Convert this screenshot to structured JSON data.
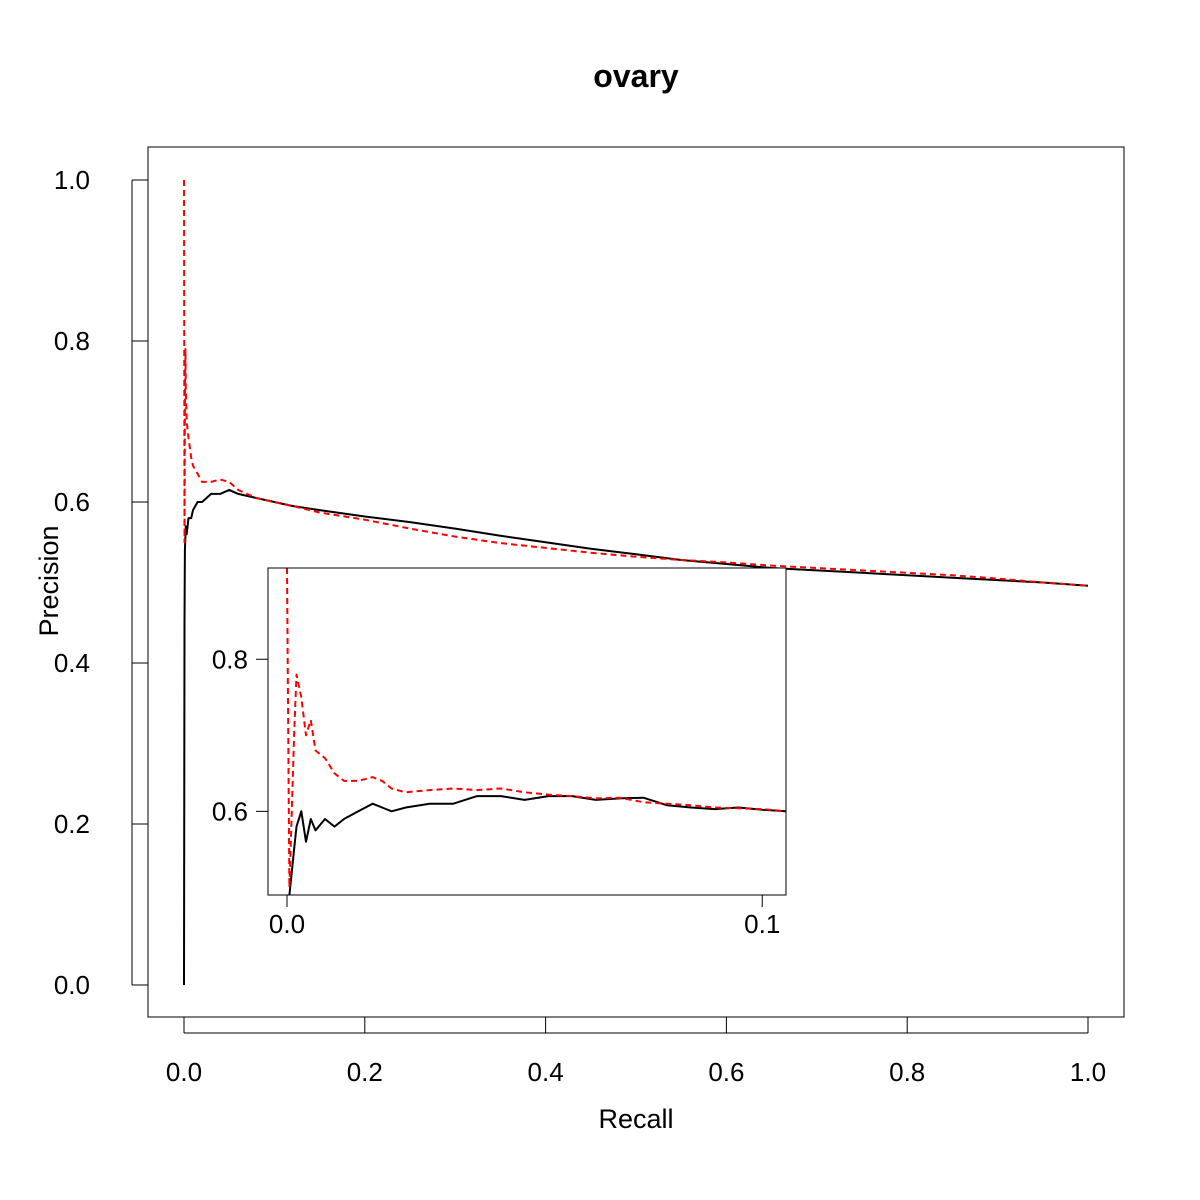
{
  "colors": {
    "series_black": "#000000",
    "series_red": "#ff0000"
  },
  "chart_data": [
    {
      "type": "line",
      "title": "ovary",
      "xlabel": "Recall",
      "ylabel": "Precision",
      "xlim": [
        0,
        1
      ],
      "ylim": [
        0,
        1
      ],
      "xticks": [
        0,
        0.2,
        0.4,
        0.6,
        0.8,
        1.0
      ],
      "xtick_labels": [
        "0.0",
        "0.2",
        "0.4",
        "0.6",
        "0.8",
        "1.0"
      ],
      "yticks": [
        0,
        0.2,
        0.4,
        0.6,
        0.8,
        1.0
      ],
      "ytick_labels": [
        "0.0",
        "0.2",
        "0.4",
        "0.6",
        "0.8",
        "1.0"
      ],
      "grid": false,
      "series": [
        {
          "color": "#000000",
          "line_style": "solid",
          "x": [
            0,
            0.0005,
            0.001,
            0.002,
            0.003,
            0.005,
            0.008,
            0.01,
            0.015,
            0.02,
            0.03,
            0.04,
            0.05,
            0.06,
            0.08,
            0.1,
            0.12,
            0.15,
            0.2,
            0.25,
            0.3,
            0.35,
            0.4,
            0.45,
            0.5,
            0.55,
            0.6,
            0.65,
            0.7,
            0.75,
            0.8,
            0.85,
            0.9,
            0.95,
            1.0
          ],
          "y": [
            0.0,
            0.45,
            0.54,
            0.57,
            0.56,
            0.58,
            0.58,
            0.59,
            0.6,
            0.6,
            0.61,
            0.61,
            0.615,
            0.61,
            0.605,
            0.6,
            0.595,
            0.59,
            0.582,
            0.575,
            0.567,
            0.558,
            0.55,
            0.542,
            0.535,
            0.528,
            0.523,
            0.518,
            0.515,
            0.512,
            0.509,
            0.506,
            0.503,
            0.5,
            0.496
          ]
        },
        {
          "color": "#ff0000",
          "line_style": "dashed",
          "x": [
            0,
            0.0005,
            0.001,
            0.0015,
            0.002,
            0.003,
            0.005,
            0.008,
            0.01,
            0.015,
            0.02,
            0.03,
            0.04,
            0.05,
            0.06,
            0.08,
            0.1,
            0.12,
            0.15,
            0.2,
            0.25,
            0.3,
            0.35,
            0.4,
            0.45,
            0.5,
            0.55,
            0.6,
            0.65,
            0.7,
            0.75,
            0.8,
            0.85,
            0.9,
            0.95,
            1.0
          ],
          "y": [
            1.0,
            0.55,
            0.72,
            0.79,
            0.74,
            0.7,
            0.68,
            0.655,
            0.645,
            0.635,
            0.625,
            0.625,
            0.628,
            0.625,
            0.615,
            0.605,
            0.6,
            0.595,
            0.587,
            0.578,
            0.567,
            0.557,
            0.549,
            0.543,
            0.537,
            0.532,
            0.528,
            0.525,
            0.521,
            0.518,
            0.515,
            0.512,
            0.509,
            0.505,
            0.5,
            0.496
          ]
        }
      ]
    },
    {
      "type": "line",
      "role": "inset",
      "title": "",
      "xlabel": "",
      "ylabel": "",
      "xlim": [
        -0.004,
        0.105
      ],
      "ylim": [
        0.49,
        0.92
      ],
      "xticks": [
        0,
        0.1
      ],
      "xtick_labels": [
        "0.0",
        "0.1"
      ],
      "yticks": [
        0.6,
        0.8
      ],
      "ytick_labels": [
        "0.6",
        "0.8"
      ],
      "grid": false,
      "series": [
        {
          "color": "#000000",
          "line_style": "solid",
          "x": [
            0.0005,
            0.001,
            0.0015,
            0.002,
            0.003,
            0.004,
            0.005,
            0.006,
            0.008,
            0.01,
            0.012,
            0.015,
            0.018,
            0.02,
            0.022,
            0.025,
            0.03,
            0.035,
            0.04,
            0.045,
            0.05,
            0.055,
            0.06,
            0.065,
            0.07,
            0.075,
            0.08,
            0.085,
            0.09,
            0.095,
            0.1,
            0.105
          ],
          "y": [
            0.49,
            0.52,
            0.55,
            0.58,
            0.6,
            0.56,
            0.59,
            0.575,
            0.59,
            0.58,
            0.59,
            0.6,
            0.61,
            0.605,
            0.6,
            0.605,
            0.61,
            0.61,
            0.62,
            0.62,
            0.615,
            0.62,
            0.62,
            0.615,
            0.617,
            0.618,
            0.608,
            0.605,
            0.603,
            0.605,
            0.602,
            0.6
          ]
        },
        {
          "color": "#ff0000",
          "line_style": "dashed",
          "x": [
            0,
            0.0005,
            0.001,
            0.0015,
            0.002,
            0.003,
            0.004,
            0.005,
            0.006,
            0.008,
            0.01,
            0.012,
            0.015,
            0.018,
            0.02,
            0.022,
            0.025,
            0.03,
            0.035,
            0.04,
            0.045,
            0.05,
            0.055,
            0.06,
            0.065,
            0.07,
            0.075,
            0.08,
            0.085,
            0.09,
            0.095,
            0.1,
            0.105
          ],
          "y": [
            0.92,
            0.5,
            0.6,
            0.7,
            0.78,
            0.75,
            0.7,
            0.72,
            0.68,
            0.67,
            0.65,
            0.64,
            0.64,
            0.645,
            0.64,
            0.63,
            0.625,
            0.628,
            0.63,
            0.628,
            0.63,
            0.625,
            0.622,
            0.62,
            0.617,
            0.618,
            0.612,
            0.61,
            0.608,
            0.605,
            0.604,
            0.603,
            0.6
          ]
        }
      ]
    }
  ]
}
